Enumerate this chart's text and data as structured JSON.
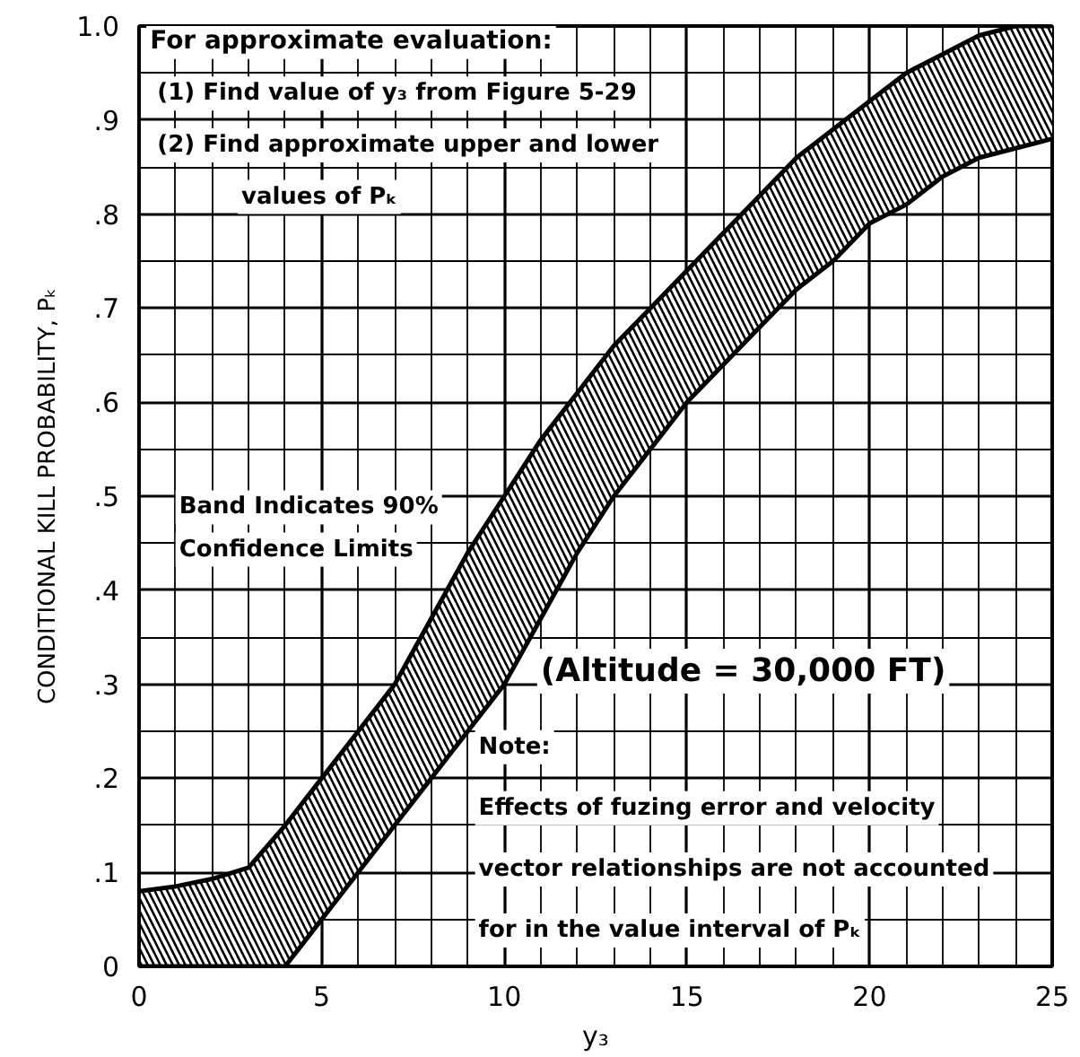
{
  "chart_data": {
    "type": "line",
    "xlabel": "y₃",
    "ylabel": "CONDITIONAL KILL PROBABILITY, Pₖ",
    "x": [
      0,
      1,
      2,
      3,
      4,
      5,
      6,
      7,
      8,
      9,
      10,
      11,
      12,
      13,
      14,
      15,
      16,
      17,
      18,
      19,
      20,
      21,
      22,
      23,
      24,
      25
    ],
    "series": [
      {
        "color": "#000000",
        "values": [
          0.08,
          0.085,
          0.093,
          0.105,
          0.15,
          0.2,
          0.25,
          0.3,
          0.37,
          0.44,
          0.5,
          0.56,
          0.61,
          0.66,
          0.7,
          0.74,
          0.78,
          0.82,
          0.86,
          0.89,
          0.92,
          0.95,
          0.97,
          0.99,
          1.0,
          1.0
        ],
        "upper": [
          0.08,
          0.085,
          0.093,
          0.105,
          0.15,
          0.2,
          0.25,
          0.3,
          0.37,
          0.44,
          0.5,
          0.56,
          0.61,
          0.66,
          0.7,
          0.74,
          0.78,
          0.82,
          0.86,
          0.89,
          0.92,
          0.95,
          0.97,
          0.99,
          1.0,
          1.0
        ],
        "lower": [
          0,
          0,
          0,
          0,
          0,
          0.05,
          0.1,
          0.15,
          0.2,
          0.25,
          0.3,
          0.37,
          0.44,
          0.5,
          0.55,
          0.6,
          0.64,
          0.68,
          0.72,
          0.75,
          0.79,
          0.81,
          0.84,
          0.86,
          0.87,
          0.88
        ]
      },
      {
        "color": "#000000",
        "values": [
          0,
          0,
          0,
          0,
          0,
          0.05,
          0.1,
          0.15,
          0.2,
          0.25,
          0.3,
          0.37,
          0.44,
          0.5,
          0.55,
          0.6,
          0.64,
          0.68,
          0.72,
          0.75,
          0.79,
          0.81,
          0.84,
          0.86,
          0.87,
          0.88
        ]
      }
    ],
    "xlim": [
      0,
      25
    ],
    "ylim": [
      0,
      1
    ],
    "xticks": [
      0,
      5,
      10,
      15,
      20,
      25
    ],
    "yticks": [
      0,
      {
        "value": 0.1,
        "label": ".1"
      },
      {
        "value": 0.2,
        "label": ".2"
      },
      {
        "value": 0.3,
        "label": ".3"
      },
      {
        "value": 0.4,
        "label": ".4"
      },
      {
        "value": 0.5,
        "label": ".5"
      },
      {
        "value": 0.6,
        "label": ".6"
      },
      {
        "value": 0.7,
        "label": ".7"
      },
      {
        "value": 0.8,
        "label": ".8"
      },
      {
        "value": 0.9,
        "label": ".9"
      },
      {
        "value": 1.0,
        "label": "1.0"
      }
    ],
    "grid": true,
    "annotations": [
      "For approximate evaluation:",
      "(1)  Find value of y₃ from Figure 5-29",
      "(2)  Find approximate upper and lower",
      "values of Pₖ",
      "Band Indicates 90%",
      "Confidence Limits",
      "(Altitude = 30,000 FT)",
      "Note:",
      "Effects of fuzing error and velocity",
      "vector relationships are not accounted",
      "for in the value interval of Pₖ"
    ]
  }
}
